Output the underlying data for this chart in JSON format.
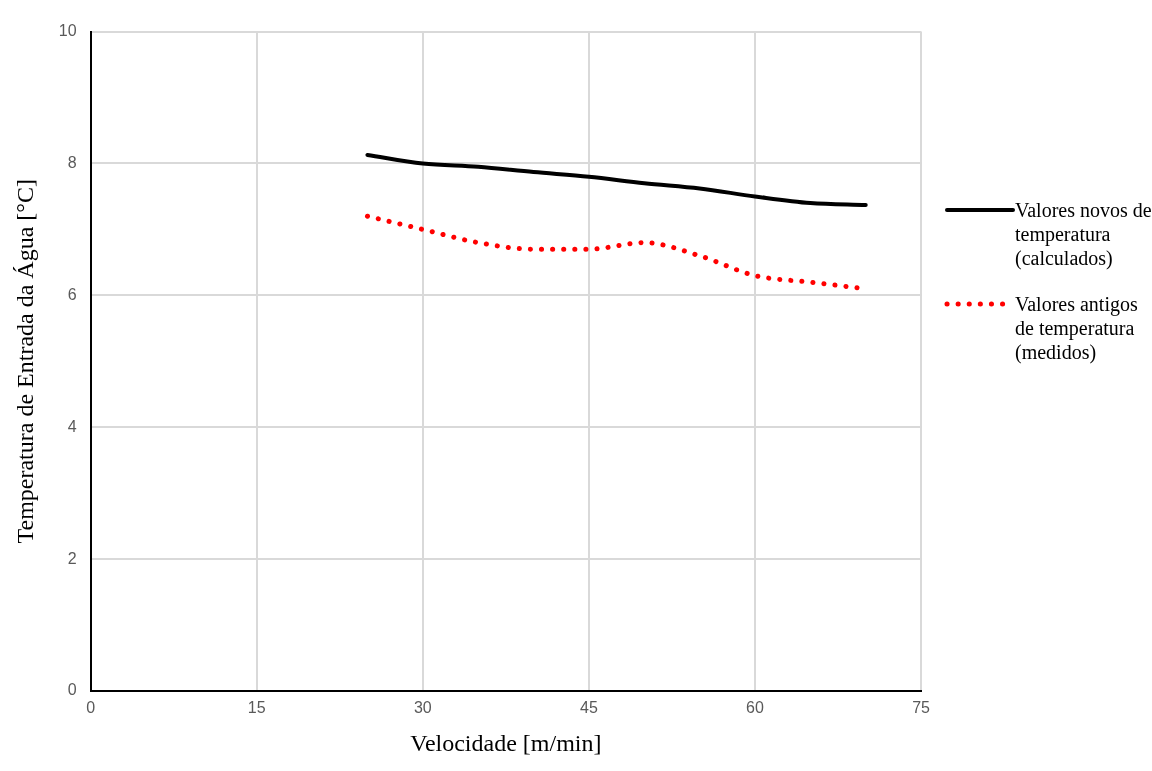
{
  "chart_data": {
    "type": "line",
    "xlabel": "Velocidade [m/min]",
    "ylabel": "Temperatura de Entrada da Água [°C]",
    "x": [
      25,
      30,
      35,
      40,
      45,
      50,
      55,
      60,
      65,
      70
    ],
    "series": [
      {
        "name": "Valores novos de temperatura (calculados)",
        "color": "#000000",
        "line_style": "solid",
        "values": [
          8.13,
          8.0,
          7.95,
          7.87,
          7.8,
          7.7,
          7.62,
          7.5,
          7.4,
          7.37
        ]
      },
      {
        "name": "Valores antigos de temperatura (medidos)",
        "color": "#ff0000",
        "line_style": "dotted",
        "values": [
          7.2,
          7.0,
          6.8,
          6.7,
          6.7,
          6.8,
          6.6,
          6.3,
          6.2,
          6.1
        ]
      }
    ],
    "xlim": [
      0,
      75
    ],
    "xticks": [
      0,
      15,
      30,
      45,
      60,
      75
    ],
    "ylim": [
      0,
      10
    ],
    "yticks": [
      0,
      2,
      4,
      6,
      8,
      10
    ],
    "grid": true,
    "legend": "right",
    "marker": "none"
  }
}
